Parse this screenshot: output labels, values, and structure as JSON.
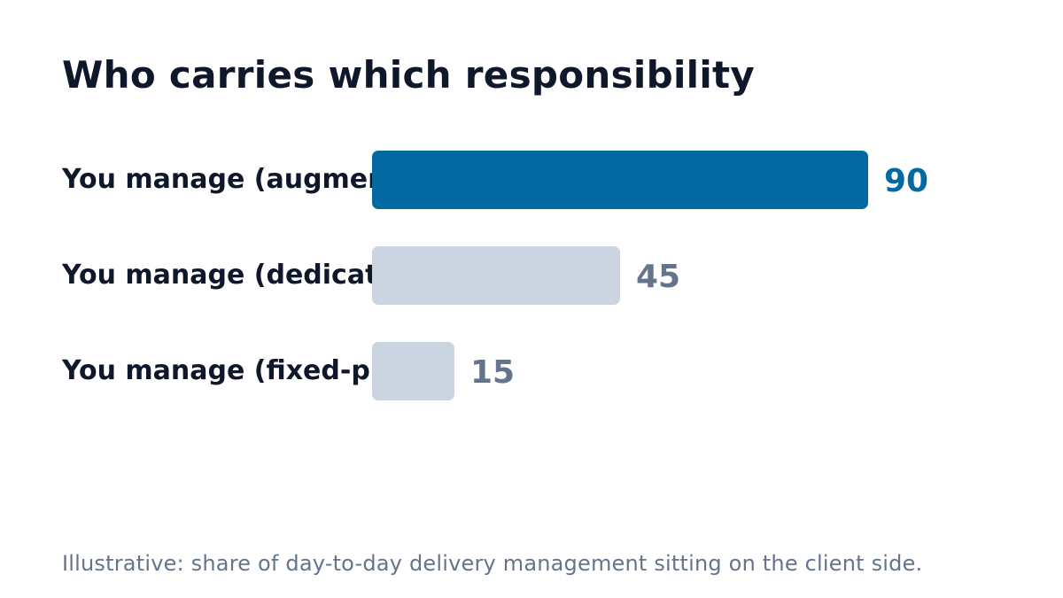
{
  "title": "Who carries which responsibility",
  "note": "Illustrative: share of day-to-day delivery management sitting on the client side.",
  "colors": {
    "highlight": "#0369a1",
    "muted_bar": "#cbd5e1",
    "muted_value": "#64748b",
    "label": "#0f172a"
  },
  "chart_data": {
    "type": "bar",
    "orientation": "horizontal",
    "title": "Who carries which responsibility",
    "categories": [
      "You manage (augmen",
      "You manage (dedicat",
      "You manage (fixed-pr"
    ],
    "values": [
      90,
      45,
      15
    ],
    "highlighted_index": 0,
    "xlim": [
      0,
      90
    ],
    "grid": false,
    "legend": "none"
  }
}
